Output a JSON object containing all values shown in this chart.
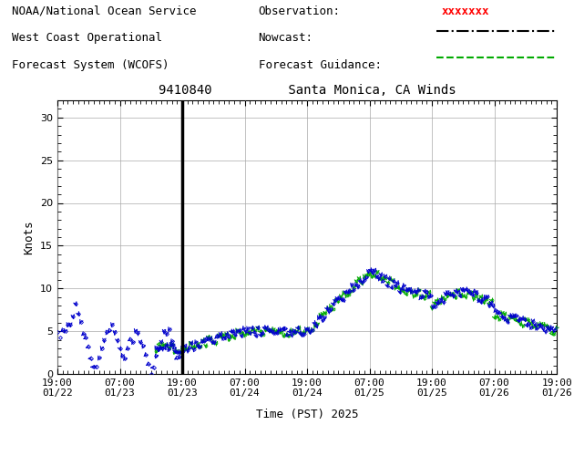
{
  "title_station": "9410840",
  "title_location": "Santa Monica, CA Winds",
  "header_line1": "NOAA/National Ocean Service",
  "header_line2": "West Coast Operational",
  "header_line3": "Forecast System (WCOFS)",
  "legend_obs": "Observation:",
  "legend_now": "Nowcast:",
  "legend_fcst": "Forecast Guidance:",
  "ylabel": "Knots",
  "xlabel": "Time (PST) 2025",
  "ylim": [
    0,
    32
  ],
  "yticks": [
    0,
    5,
    10,
    15,
    20,
    25,
    30
  ],
  "bg_color": "#ffffff",
  "grid_color": "#aaaaaa",
  "obs_color": "#ff0000",
  "nowcast_color": "#000000",
  "fcst_color": "#00aa00",
  "wind_obs_color": "#0000cc",
  "wind_fcst_color": "#00aa00",
  "vline_x": 24,
  "x_start_hour": 0,
  "x_end_hour": 96,
  "tick_label_fontsize": 8,
  "header_fontsize": 9,
  "title_fontsize": 10,
  "xtick_hours": [
    0,
    12,
    24,
    36,
    48,
    60,
    72,
    84,
    96
  ],
  "xtick_labels": [
    "19:00\n01/22",
    "07:00\n01/23",
    "19:00\n01/23",
    "07:00\n01/24",
    "19:00\n01/24",
    "07:00\n01/25",
    "19:00\n01/25",
    "07:00\n01/26",
    "19:00\n01/26"
  ]
}
